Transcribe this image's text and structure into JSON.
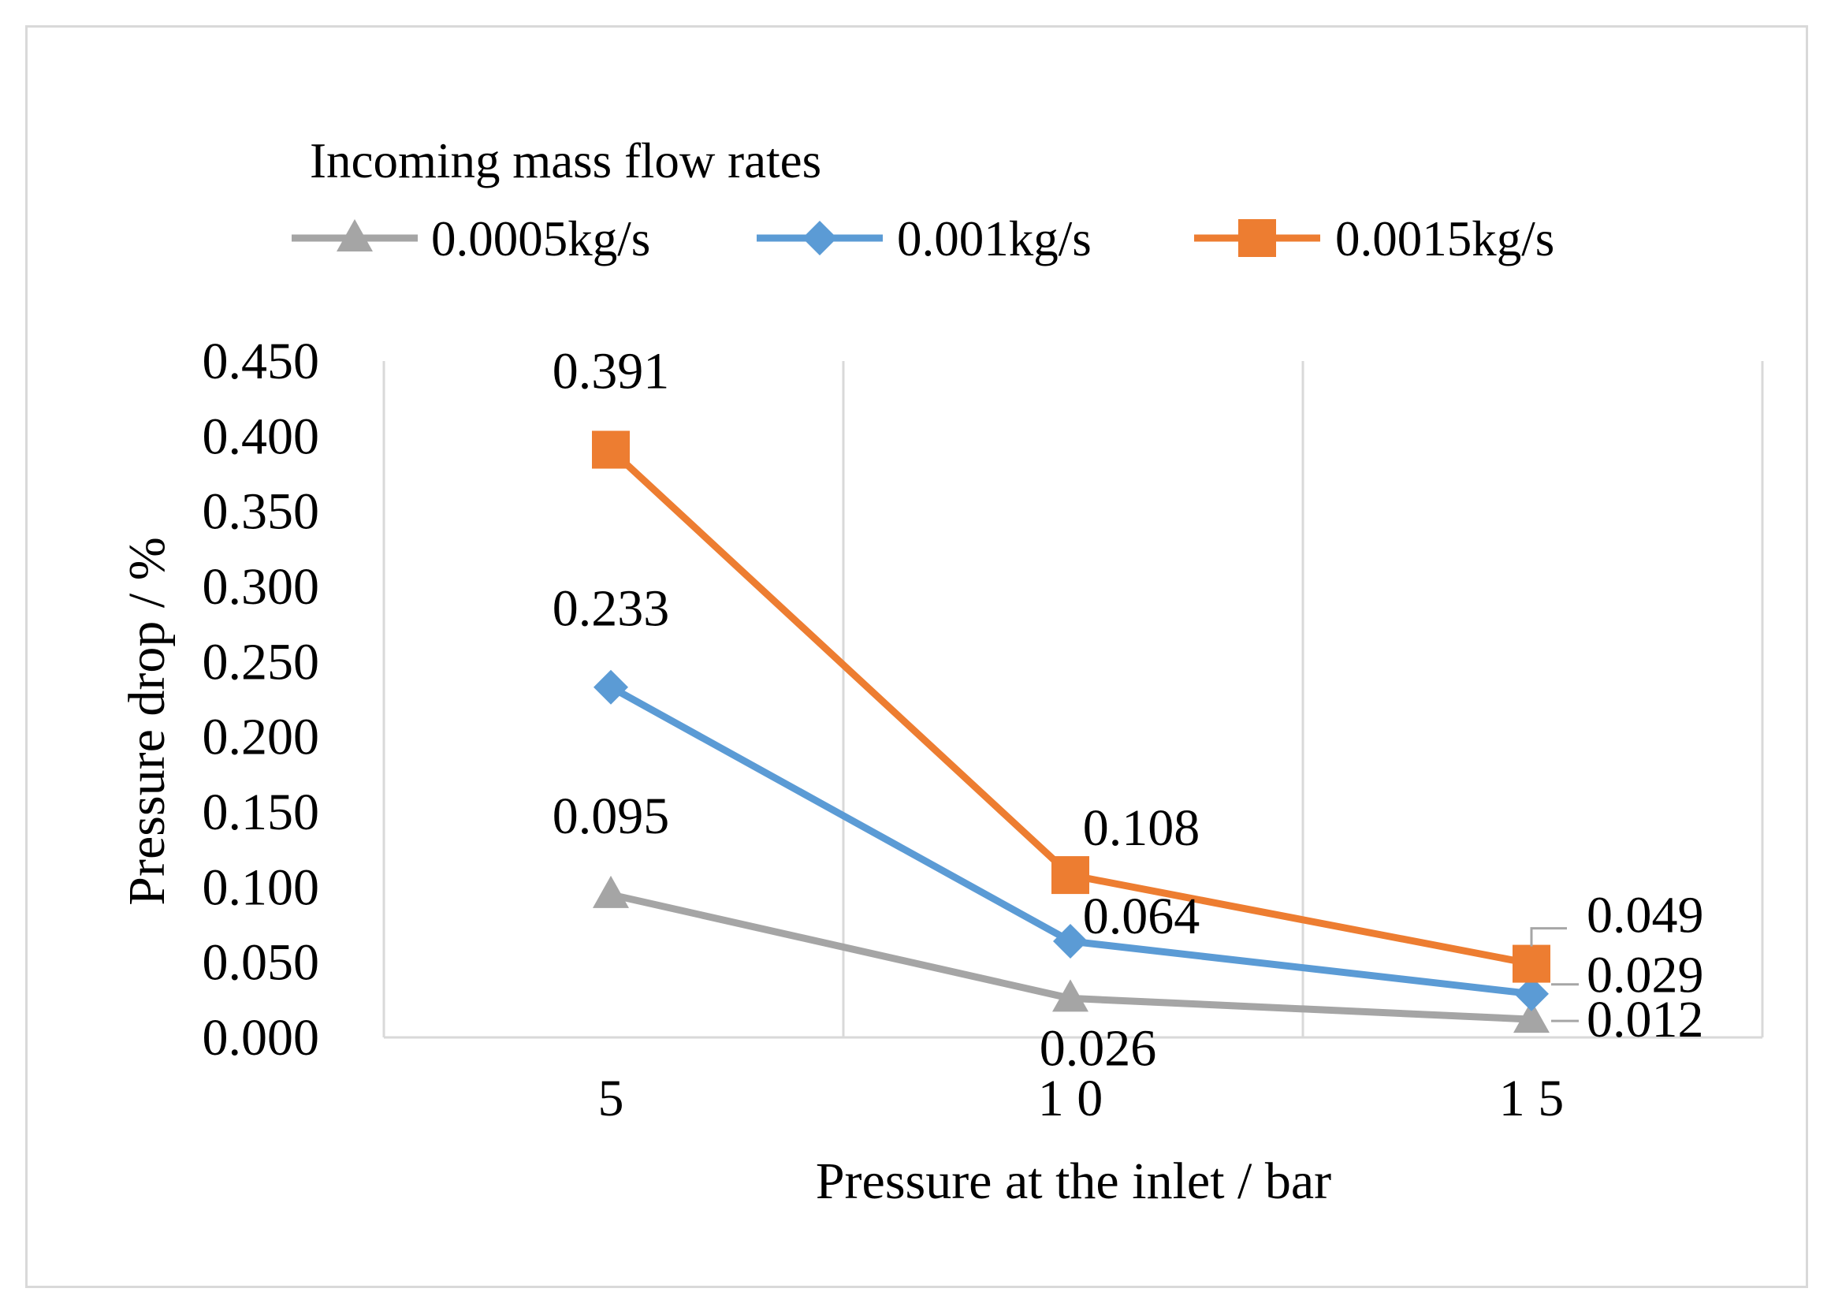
{
  "chart_data": {
    "type": "line",
    "title": "",
    "legend_title": "Incoming mass flow rates",
    "legend_position": "top",
    "xlabel": "Pressure at the inlet / bar",
    "ylabel": "Pressure drop / %",
    "categories": [
      "5",
      "10",
      "15"
    ],
    "category_labels": [
      "5",
      "1 0",
      "1 5"
    ],
    "ylim": [
      0,
      0.45
    ],
    "yticks": [
      0,
      0.05,
      0.1,
      0.15,
      0.2,
      0.25,
      0.3,
      0.35,
      0.4,
      0.45
    ],
    "ytick_labels": [
      "0.000",
      "0.050",
      "0.100",
      "0.150",
      "0.200",
      "0.250",
      "0.300",
      "0.350",
      "0.400",
      "0.450"
    ],
    "grid": "vertical",
    "series": [
      {
        "name": "0.0005kg/s",
        "values": [
          0.095,
          0.026,
          0.012
        ],
        "labels": [
          "0.095",
          "0.026",
          "0.012"
        ],
        "color": "#a5a5a5",
        "marker": "triangle"
      },
      {
        "name": "0.001kg/s",
        "values": [
          0.233,
          0.064,
          0.029
        ],
        "labels": [
          "0.233",
          "0.064",
          "0.029"
        ],
        "color": "#5b9bd5",
        "marker": "diamond"
      },
      {
        "name": "0.0015kg/s",
        "values": [
          0.391,
          0.108,
          0.049
        ],
        "labels": [
          "0.391",
          "0.108",
          "0.049"
        ],
        "color": "#ed7d31",
        "marker": "square"
      }
    ]
  }
}
